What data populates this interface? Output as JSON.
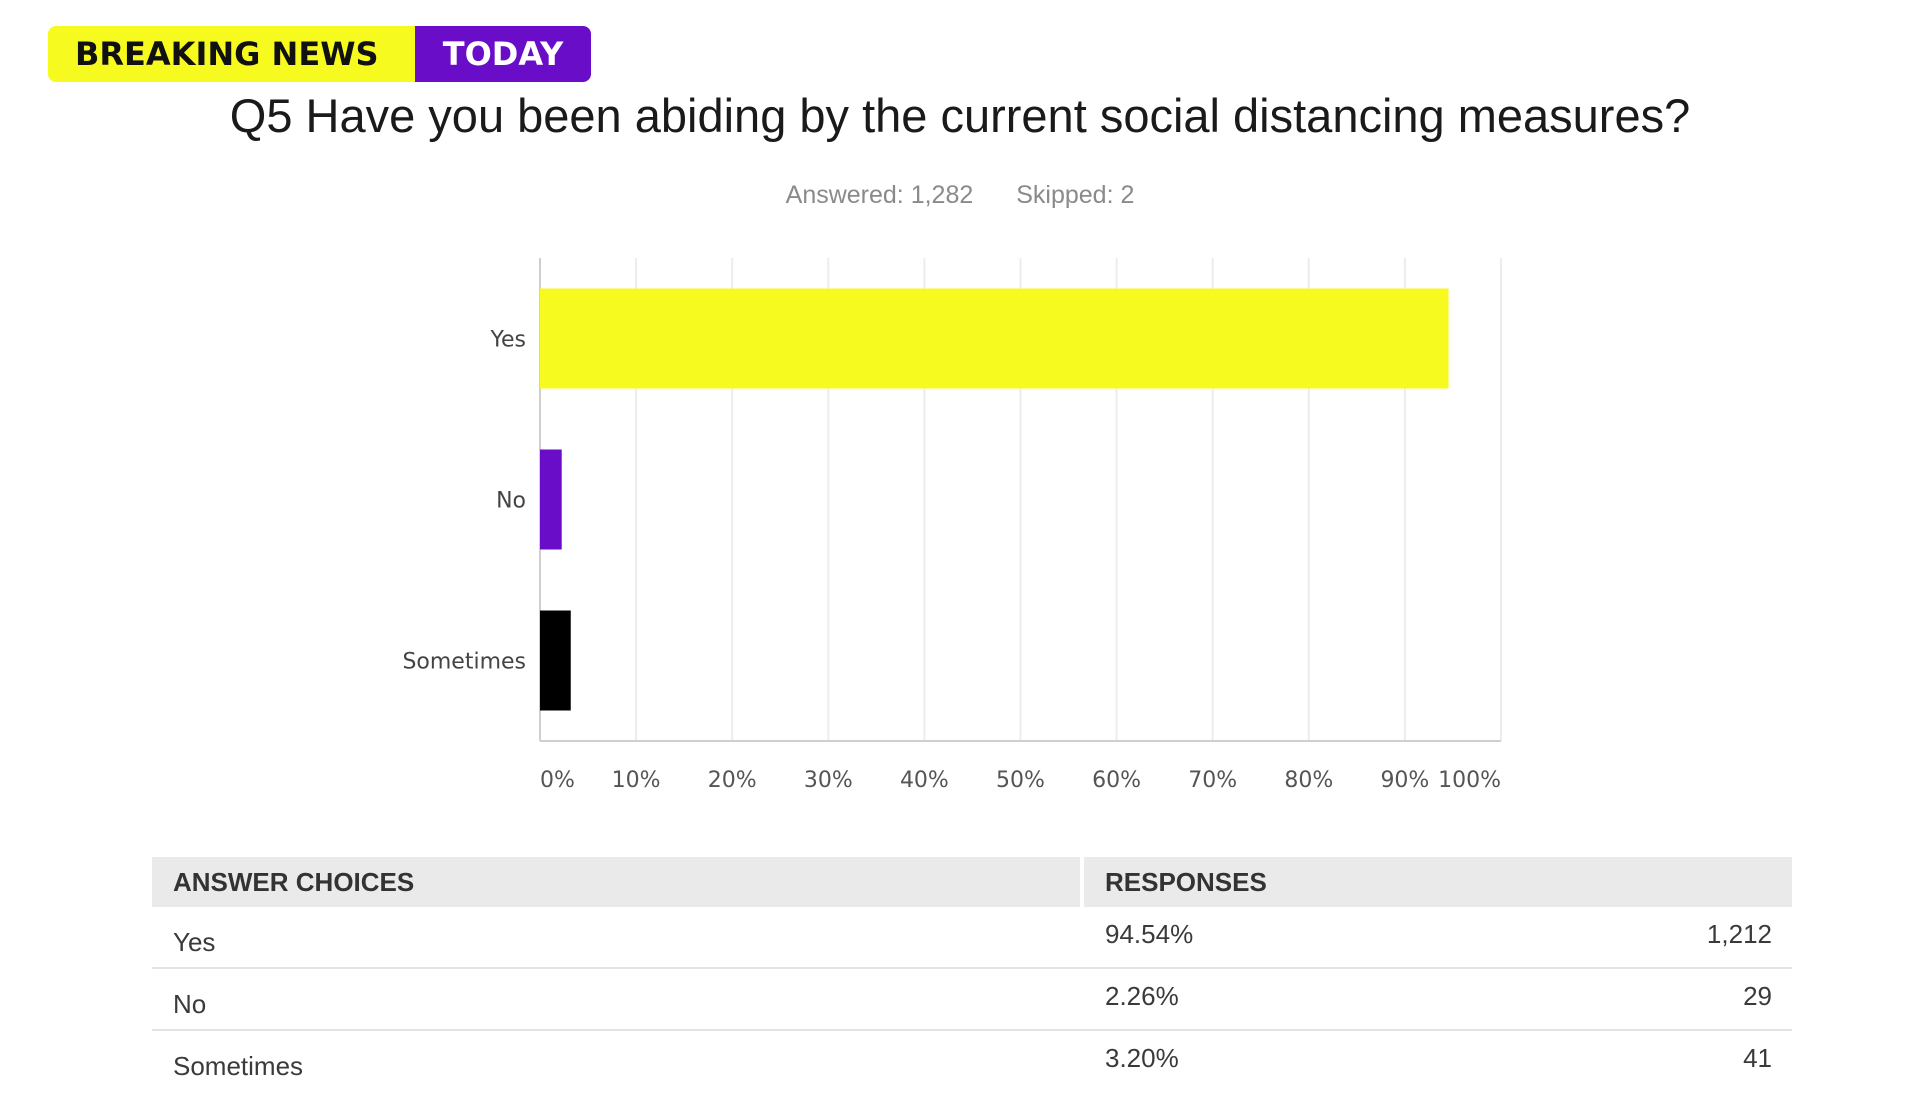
{
  "badge": {
    "left": "BREAKING NEWS",
    "right": "TODAY",
    "left_color": "#f7fa1f",
    "right_color": "#6a0dc9"
  },
  "question": "Q5 Have you been abiding by the current social distancing measures?",
  "stats": {
    "answered": "Answered: 1,282",
    "skipped": "Skipped: 2"
  },
  "chart_data": {
    "type": "bar",
    "orientation": "horizontal",
    "categories": [
      "Yes",
      "No",
      "Sometimes"
    ],
    "values": [
      94.54,
      2.26,
      3.2
    ],
    "colors": [
      "#f7fa1f",
      "#6a0dc9",
      "#000000"
    ],
    "xlim": [
      0,
      100
    ],
    "xticks": [
      "0%",
      "10%",
      "20%",
      "30%",
      "40%",
      "50%",
      "60%",
      "70%",
      "80%",
      "90%",
      "100%"
    ],
    "grid": true
  },
  "table": {
    "headers": [
      "ANSWER CHOICES",
      "RESPONSES"
    ],
    "rows": [
      {
        "choice": "Yes",
        "percent": "94.54%",
        "count": "1,212"
      },
      {
        "choice": "No",
        "percent": "2.26%",
        "count": "29"
      },
      {
        "choice": "Sometimes",
        "percent": "3.20%",
        "count": "41"
      }
    ]
  }
}
